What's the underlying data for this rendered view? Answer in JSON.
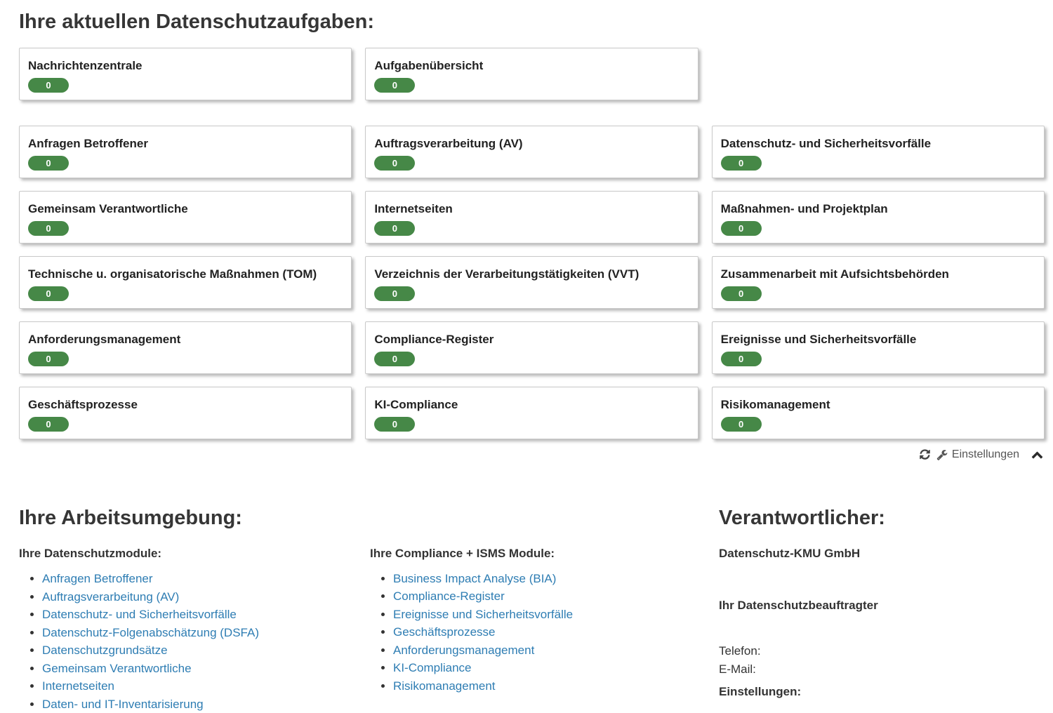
{
  "tasks_section": {
    "title": "Ihre aktuellen Datenschutzaufgaben:",
    "top_cards": [
      {
        "label": "Nachrichtenzentrale",
        "count": "0"
      },
      {
        "label": "Aufgabenübersicht",
        "count": "0"
      }
    ],
    "cards": [
      {
        "label": "Anfragen Betroffener",
        "count": "0"
      },
      {
        "label": "Auftragsverarbeitung (AV)",
        "count": "0"
      },
      {
        "label": "Datenschutz- und Sicherheitsvorfälle",
        "count": "0"
      },
      {
        "label": "Gemeinsam Verantwortliche",
        "count": "0"
      },
      {
        "label": "Internetseiten",
        "count": "0"
      },
      {
        "label": "Maßnahmen- und Projektplan",
        "count": "0"
      },
      {
        "label": "Technische u. organisatorische Maßnahmen (TOM)",
        "count": "0"
      },
      {
        "label": "Verzeichnis der Verarbeitungstätigkeiten (VVT)",
        "count": "0"
      },
      {
        "label": "Zusammenarbeit mit Aufsichtsbehörden",
        "count": "0"
      },
      {
        "label": "Anforderungsmanagement",
        "count": "0"
      },
      {
        "label": "Compliance-Register",
        "count": "0"
      },
      {
        "label": "Ereignisse und Sicherheitsvorfälle",
        "count": "0"
      },
      {
        "label": "Geschäftsprozesse",
        "count": "0"
      },
      {
        "label": "KI-Compliance",
        "count": "0"
      },
      {
        "label": "Risikomanagement",
        "count": "0"
      }
    ],
    "footer": {
      "settings_label": "Einstellungen",
      "icons": [
        "refresh-icon",
        "wrench-icon",
        "chevron-up-icon"
      ]
    }
  },
  "workspace_section": {
    "title": "Ihre Arbeitsumgebung:",
    "datenschutz_modules": {
      "title": "Ihre Datenschutzmodule:",
      "links": [
        "Anfragen Betroffener",
        "Auftragsverarbeitung (AV)",
        "Datenschutz- und Sicherheitsvorfälle",
        "Datenschutz-Folgenabschätzung (DSFA)",
        "Datenschutzgrundsätze",
        "Gemeinsam Verantwortliche",
        "Internetseiten",
        "Daten- und IT-Inventarisierung"
      ]
    },
    "compliance_modules": {
      "title": "Ihre Compliance + ISMS Module:",
      "links": [
        "Business Impact Analyse (BIA)",
        "Compliance-Register",
        "Ereignisse und Sicherheitsvorfälle",
        "Geschäftsprozesse",
        "Anforderungsmanagement",
        "KI-Compliance",
        "Risikomanagement"
      ]
    }
  },
  "responsible_section": {
    "title": "Verantwortlicher:",
    "company": "Datenschutz-KMU GmbH",
    "dpo_label": "Ihr Datenschutzbeauftragter",
    "phone_label": "Telefon:",
    "email_label": "E-Mail:",
    "settings_label": "Einstellungen:"
  },
  "colors": {
    "badge_green": "#468847",
    "link_blue": "#2e7db3",
    "heading_dark": "#363636",
    "toolbar_gray": "#555555"
  }
}
